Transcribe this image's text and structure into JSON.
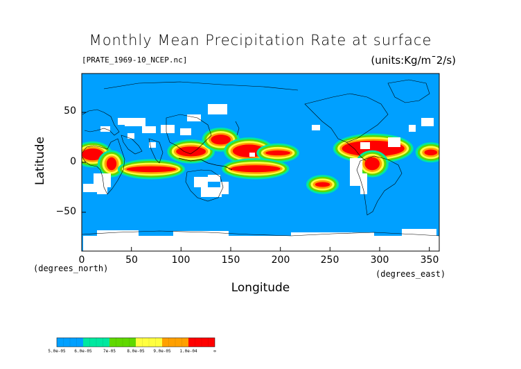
{
  "title": "Monthly Mean Precipitation Rate at surface",
  "subtitle_left": "[PRATE_1969-10_NCEP.nc]",
  "subtitle_right": "(units:Kg/m¯2/s)",
  "y_label": "Latitude",
  "x_label": "Longitude",
  "y_units": "(degrees_north)",
  "x_units": "(degrees_east)",
  "y_ticks": [
    "50",
    "0",
    "−50"
  ],
  "x_ticks": [
    "0",
    "50",
    "100",
    "150",
    "200",
    "250",
    "300",
    "350"
  ],
  "colors": {
    "ocean_base": "#00a0ff",
    "no_data": "#ffffff",
    "level1": "#00e8a0",
    "level2": "#60d800",
    "level3": "#ffff40",
    "level4": "#ffa000",
    "level5": "#ff0000",
    "coast": "#000000"
  },
  "legend": {
    "labels": [
      "5.0e-05",
      "6.0e-05",
      "7e-05",
      "8.0e-05",
      "9.0e-05",
      "1.0e-04",
      "∞"
    ],
    "colors": [
      "#00a0ff",
      "#00e8a0",
      "#60d800",
      "#ffff40",
      "#ffa000",
      "#ff0000"
    ]
  },
  "chart_data": {
    "type": "heatmap",
    "title": "Monthly Mean Precipitation Rate at surface",
    "xlabel": "Longitude",
    "ylabel": "Latitude",
    "xlim": [
      0,
      360
    ],
    "ylim": [
      -90,
      90
    ],
    "levels": [
      5e-05,
      6e-05,
      7e-05,
      8e-05,
      9e-05,
      0.0001
    ],
    "grid": false,
    "regions": [
      {
        "lon": [
          0,
          22
        ],
        "lat": [
          2,
          14
        ],
        "level": 5
      },
      {
        "lon": [
          25,
          35
        ],
        "lat": [
          -8,
          5
        ],
        "level": 5
      },
      {
        "lon": [
          45,
          95
        ],
        "lat": [
          -10,
          -4
        ],
        "level": 5
      },
      {
        "lon": [
          95,
          125
        ],
        "lat": [
          6,
          16
        ],
        "level": 5
      },
      {
        "lon": [
          130,
          150
        ],
        "lat": [
          18,
          28
        ],
        "level": 5
      },
      {
        "lon": [
          152,
          185
        ],
        "lat": [
          5,
          18
        ],
        "level": 5
      },
      {
        "lon": [
          185,
          210
        ],
        "lat": [
          7,
          12
        ],
        "level": 5
      },
      {
        "lon": [
          150,
          200
        ],
        "lat": [
          -10,
          -3
        ],
        "level": 5
      },
      {
        "lon": [
          235,
          250
        ],
        "lat": [
          -25,
          -20
        ],
        "level": 5
      },
      {
        "lon": [
          262,
          325
        ],
        "lat": [
          6,
          22
        ],
        "level": 5
      },
      {
        "lon": [
          285,
          300
        ],
        "lat": [
          -8,
          5
        ],
        "level": 5
      },
      {
        "lon": [
          345,
          358
        ],
        "lat": [
          7,
          13
        ],
        "level": 5
      }
    ]
  }
}
